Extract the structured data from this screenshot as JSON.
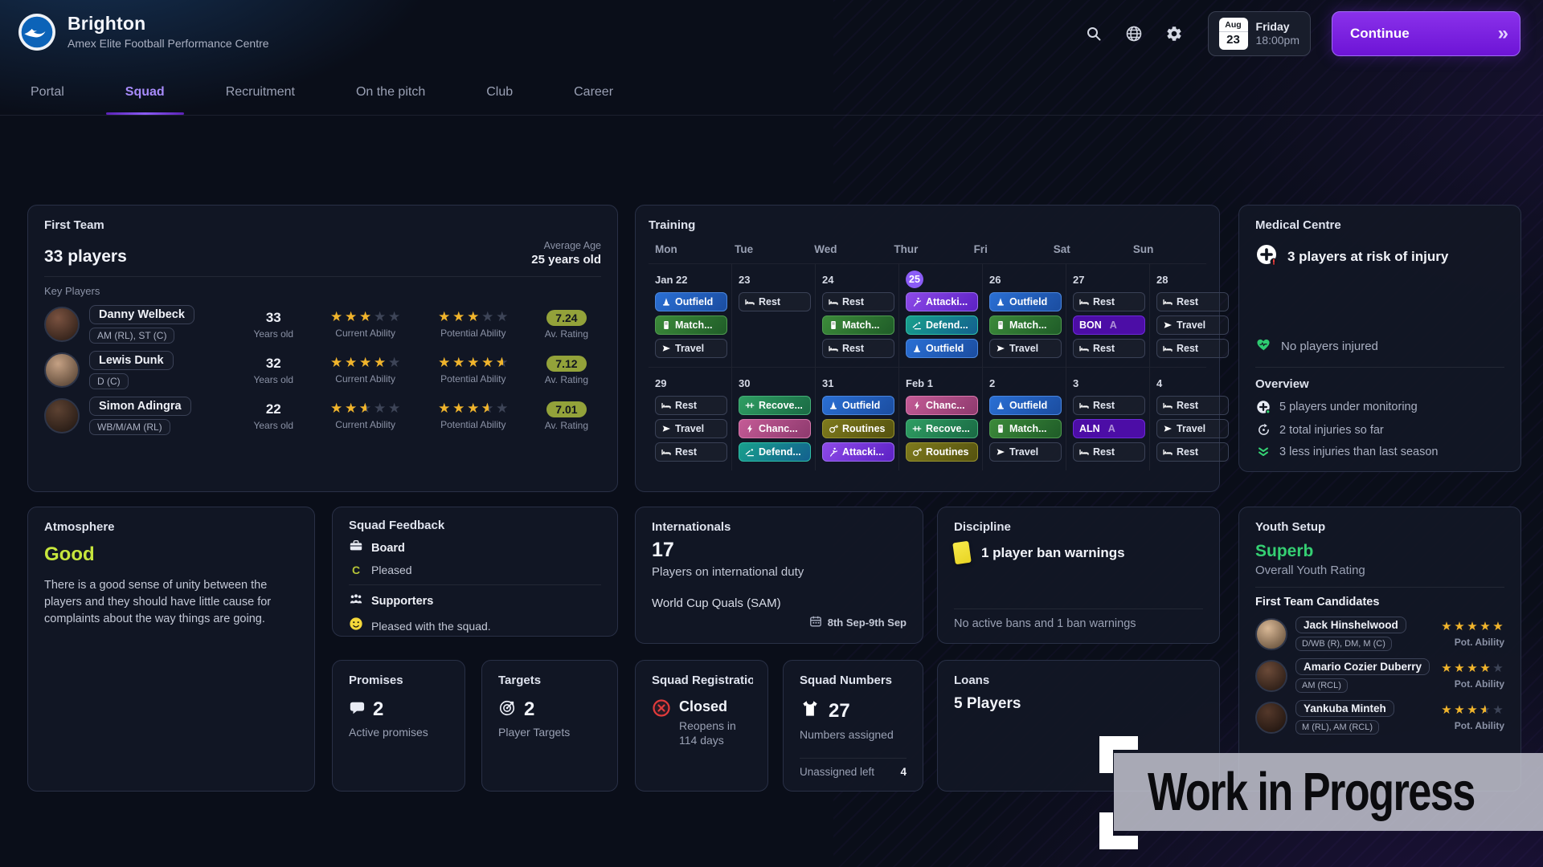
{
  "header": {
    "club_name": "Brighton",
    "club_subtitle": "Amex Elite Football Performance Centre",
    "date_widget": {
      "month": "Aug",
      "day": "23",
      "weekday": "Friday",
      "time": "18:00pm"
    },
    "continue_label": "Continue"
  },
  "nav": {
    "tabs": [
      {
        "label": "Portal",
        "active": false
      },
      {
        "label": "Squad",
        "active": true
      },
      {
        "label": "Recruitment",
        "active": false
      },
      {
        "label": "On the pitch",
        "active": false
      },
      {
        "label": "Club",
        "active": false
      },
      {
        "label": "Career",
        "active": false
      }
    ]
  },
  "first_team": {
    "title": "First Team",
    "player_count": "33 players",
    "average_age_label": "Average Age",
    "average_age_value": "25 years old",
    "key_players_label": "Key Players",
    "age_caption": "Years old",
    "ca_caption": "Current Ability",
    "pa_caption": "Potential Ability",
    "rating_caption": "Av. Rating",
    "players": [
      {
        "name": "Danny Welbeck",
        "positions": "AM (RL), ST (C)",
        "age": "33",
        "current_ability": 3,
        "potential_ability": 3,
        "av_rating": "7.24"
      },
      {
        "name": "Lewis Dunk",
        "positions": "D (C)",
        "age": "32",
        "current_ability": 4,
        "potential_ability": 4.5,
        "av_rating": "7.12"
      },
      {
        "name": "Simon Adingra",
        "positions": "WB/M/AM (RL)",
        "age": "22",
        "current_ability": 2.5,
        "potential_ability": 3.5,
        "av_rating": "7.01"
      }
    ]
  },
  "training": {
    "title": "Training",
    "day_headers": [
      "Mon",
      "Tue",
      "Wed",
      "Thur",
      "Fri",
      "Sat",
      "Sun"
    ],
    "weeks": [
      {
        "days": [
          {
            "date": "Jan 22",
            "highlight": false,
            "chips": [
              {
                "label": "Outfield",
                "type": "outfield"
              },
              {
                "label": "Match...",
                "type": "match"
              },
              {
                "label": "Travel",
                "type": "travel"
              }
            ]
          },
          {
            "date": "23",
            "highlight": false,
            "chips": [
              {
                "label": "Rest",
                "type": "rest"
              }
            ]
          },
          {
            "date": "24",
            "highlight": false,
            "chips": [
              {
                "label": "Rest",
                "type": "rest"
              },
              {
                "label": "Match...",
                "type": "match"
              },
              {
                "label": "Rest",
                "type": "rest"
              }
            ]
          },
          {
            "date": "25",
            "highlight": true,
            "chips": [
              {
                "label": "Attacki...",
                "type": "attacking"
              },
              {
                "label": "Defend...",
                "type": "defending"
              },
              {
                "label": "Outfield",
                "type": "outfield"
              }
            ]
          },
          {
            "date": "26",
            "highlight": false,
            "chips": [
              {
                "label": "Outfield",
                "type": "outfield"
              },
              {
                "label": "Match...",
                "type": "match"
              },
              {
                "label": "Travel",
                "type": "travel"
              }
            ]
          },
          {
            "date": "27",
            "highlight": false,
            "chips": [
              {
                "label": "Rest",
                "type": "rest"
              },
              {
                "label": "BON",
                "type": "fixture",
                "suffix": "A"
              },
              {
                "label": "Rest",
                "type": "rest"
              }
            ]
          },
          {
            "date": "28",
            "highlight": false,
            "chips": [
              {
                "label": "Rest",
                "type": "rest"
              },
              {
                "label": "Travel",
                "type": "travel"
              },
              {
                "label": "Rest",
                "type": "rest"
              }
            ]
          }
        ]
      },
      {
        "days": [
          {
            "date": "29",
            "highlight": false,
            "chips": [
              {
                "label": "Rest",
                "type": "rest"
              },
              {
                "label": "Travel",
                "type": "travel"
              },
              {
                "label": "Rest",
                "type": "rest"
              }
            ]
          },
          {
            "date": "30",
            "highlight": false,
            "chips": [
              {
                "label": "Recove...",
                "type": "recovery"
              },
              {
                "label": "Chanc...",
                "type": "chance"
              },
              {
                "label": "Defend...",
                "type": "defending"
              }
            ]
          },
          {
            "date": "31",
            "highlight": false,
            "chips": [
              {
                "label": "Outfield",
                "type": "outfield"
              },
              {
                "label": "Routines",
                "type": "routines"
              },
              {
                "label": "Attacki...",
                "type": "attacking"
              }
            ]
          },
          {
            "date": "Feb 1",
            "highlight": false,
            "chips": [
              {
                "label": "Chanc...",
                "type": "chance"
              },
              {
                "label": "Recove...",
                "type": "recovery"
              },
              {
                "label": "Routines",
                "type": "routines"
              }
            ]
          },
          {
            "date": "2",
            "highlight": false,
            "chips": [
              {
                "label": "Outfield",
                "type": "outfield"
              },
              {
                "label": "Match...",
                "type": "match"
              },
              {
                "label": "Travel",
                "type": "travel"
              }
            ]
          },
          {
            "date": "3",
            "highlight": false,
            "chips": [
              {
                "label": "Rest",
                "type": "rest"
              },
              {
                "label": "ALN",
                "type": "fixture",
                "suffix": "A"
              },
              {
                "label": "Rest",
                "type": "rest"
              }
            ]
          },
          {
            "date": "4",
            "highlight": false,
            "chips": [
              {
                "label": "Rest",
                "type": "rest"
              },
              {
                "label": "Travel",
                "type": "travel"
              },
              {
                "label": "Rest",
                "type": "rest"
              }
            ]
          }
        ]
      }
    ]
  },
  "medical": {
    "title": "Medical Centre",
    "risk_headline": "3 players at risk of injury",
    "injured_status": "No players injured",
    "overview_label": "Overview",
    "overview_items": [
      {
        "icon": "monitoring-cross-icon",
        "text": "5 players under monitoring"
      },
      {
        "icon": "injury-history-icon",
        "text": "2 total injuries so far"
      },
      {
        "icon": "double-chevron-down-icon",
        "text": "3 less injuries than last season"
      }
    ]
  },
  "atmosphere": {
    "title": "Atmosphere",
    "rating": "Good",
    "description": "There is a good sense of unity between the players and they should have little cause for complaints about the way things are going."
  },
  "squad_feedback": {
    "title": "Squad Feedback",
    "board_label": "Board",
    "board_status": "Pleased",
    "board_grade": "C",
    "supporters_label": "Supporters",
    "supporters_status": "Pleased with the squad."
  },
  "internationals": {
    "title": "Internationals",
    "count": "17",
    "subtitle": "Players on international duty",
    "competition": "World Cup Quals (SAM)",
    "dates": "8th Sep-9th Sep"
  },
  "discipline": {
    "title": "Discipline",
    "headline": "1 player ban warnings",
    "status": "No active bans and 1 ban warnings"
  },
  "promises": {
    "title": "Promises",
    "count": "2",
    "subtitle": "Active promises"
  },
  "targets": {
    "title": "Targets",
    "count": "2",
    "subtitle": "Player Targets"
  },
  "squad_registration": {
    "title": "Squad Registration",
    "status": "Closed",
    "subtitle": "Reopens in 114 days"
  },
  "squad_numbers": {
    "title": "Squad Numbers",
    "count": "27",
    "subtitle": "Numbers assigned",
    "unassigned_label": "Unassigned left",
    "unassigned_value": "4"
  },
  "loans": {
    "title": "Loans",
    "count_text": "5 Players"
  },
  "youth": {
    "title": "Youth Setup",
    "rating": "Superb",
    "rating_caption": "Overall Youth Rating",
    "candidates_label": "First Team Candidates",
    "pot_caption": "Pot. Ability",
    "candidates": [
      {
        "name": "Jack Hinshelwood",
        "positions": "D/WB (R), DM, M (C)",
        "pot_ability": 5
      },
      {
        "name": "Amario Cozier Duberry",
        "positions": "AM (RCL)",
        "pot_ability": 4
      },
      {
        "name": "Yankuba Minteh",
        "positions": "M (RL), AM (RCL)",
        "pot_ability": 3.5
      }
    ]
  },
  "watermark": {
    "text": "Work in Progress"
  },
  "colors": {
    "accent_purple": "#7c3aed",
    "rating_badge_green": "#93a23a",
    "positive_green": "#35d073",
    "atmosphere_lime": "#c7e63d",
    "star_gold": "#f0b42c",
    "warning_yellow": "#f2e23c",
    "closed_red": "#e23b3b"
  }
}
